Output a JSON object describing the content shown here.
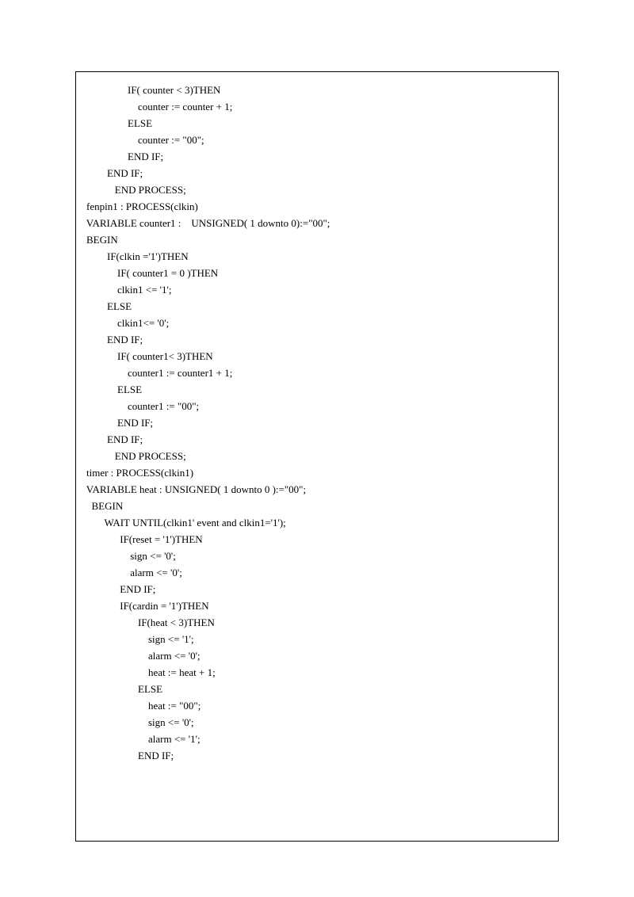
{
  "code": {
    "lines": [
      "                    IF( counter < 3)THEN",
      "                        counter := counter + 1;",
      "                    ELSE",
      "                        counter := \"00\";",
      "                    END IF;",
      "            END IF;",
      "               END PROCESS;",
      "    fenpin1 : PROCESS(clkin)",
      "    VARIABLE counter1 :    UNSIGNED( 1 downto 0):=\"00\";",
      "    BEGIN",
      "            IF(clkin ='1')THEN",
      "                IF( counter1 = 0 )THEN",
      "                clkin1 <= '1';",
      "            ELSE",
      "                clkin1<= '0';",
      "            END IF;",
      "",
      "                IF( counter1< 3)THEN",
      "                    counter1 := counter1 + 1;",
      "                ELSE",
      "                    counter1 := \"00\";",
      "                END IF;",
      "            END IF;",
      "               END PROCESS;",
      "",
      "    timer : PROCESS(clkin1)",
      "    VARIABLE heat : UNSIGNED( 1 downto 0 ):=\"00\";",
      "      BEGIN",
      "           WAIT UNTIL(clkin1' event and clkin1='1');",
      "                 IF(reset = '1')THEN",
      "                     sign <= '0';",
      "                     alarm <= '0';",
      "                 END IF;",
      "",
      "                 IF(cardin = '1')THEN",
      "                        IF(heat < 3)THEN",
      "                            sign <= '1';",
      "                            alarm <= '0';",
      "                            heat := heat + 1;",
      "                        ELSE",
      "                            heat := \"00\";",
      "                            sign <= '0';",
      "                            alarm <= '1';",
      "                        END IF;"
    ]
  }
}
